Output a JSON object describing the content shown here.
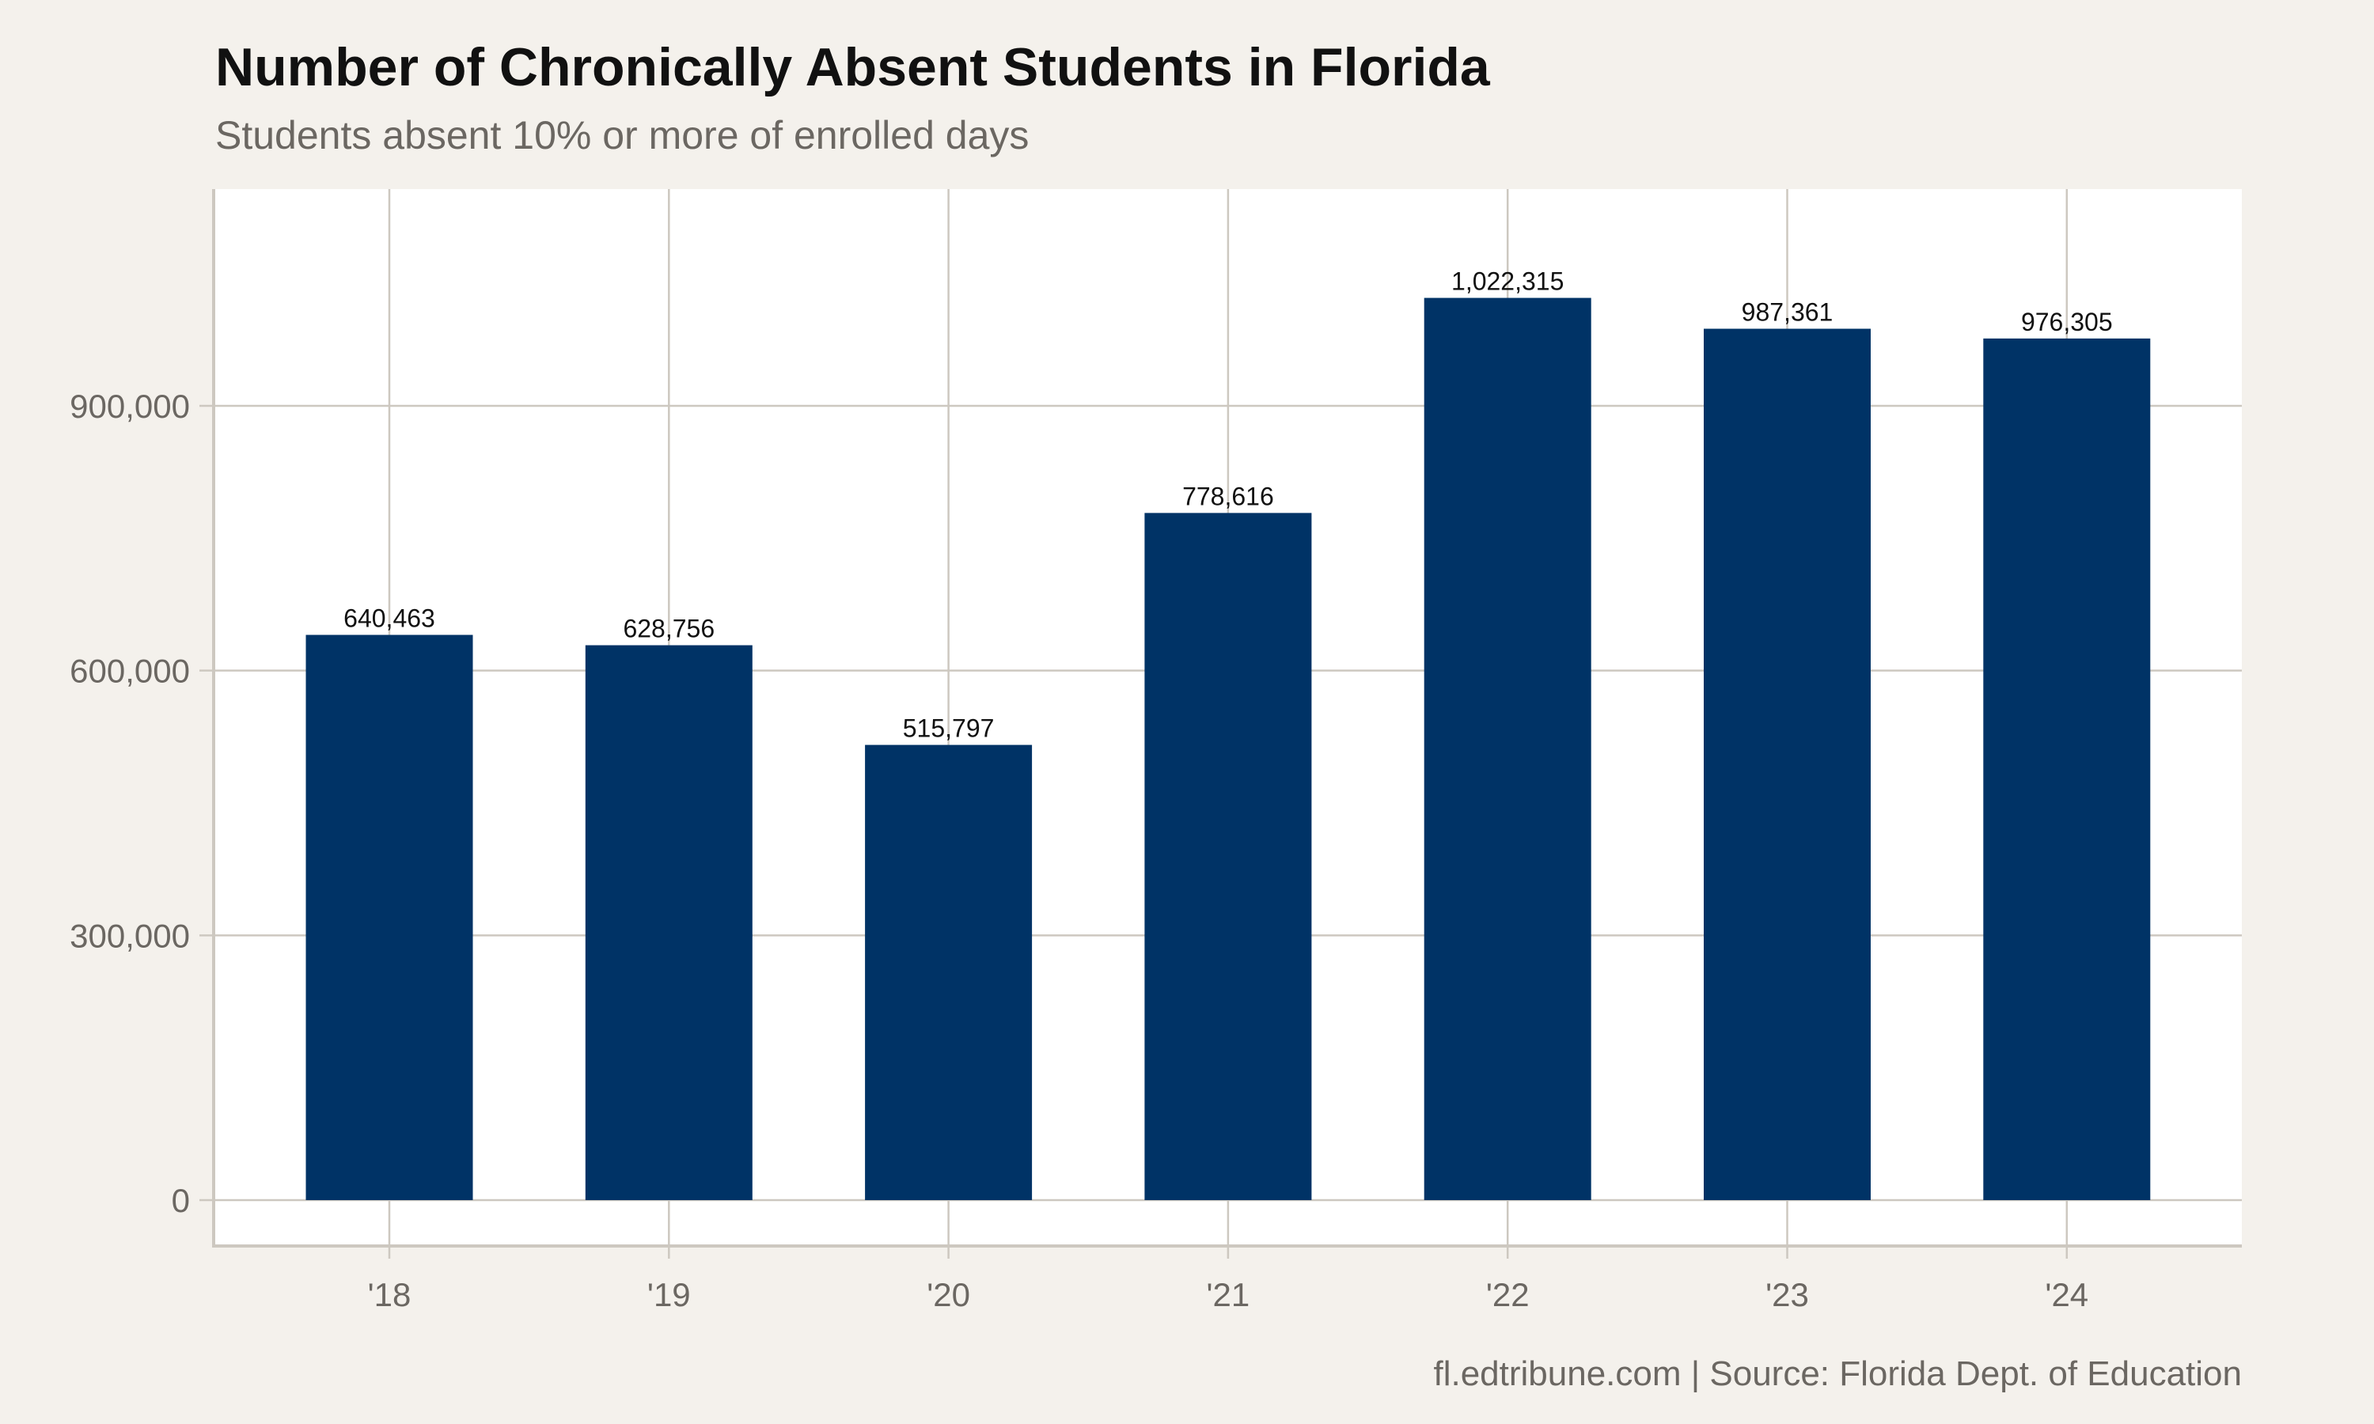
{
  "chart_data": {
    "type": "bar",
    "title": "Number of Chronically Absent Students in Florida",
    "subtitle": "Students absent 10% or more of enrolled days",
    "caption": "fl.edtribune.com | Source: Florida Dept. of Education",
    "xlabel": "",
    "ylabel": "",
    "categories": [
      "'18",
      "'19",
      "'20",
      "'21",
      "'22",
      "'23",
      "'24"
    ],
    "values": [
      640463,
      628756,
      515797,
      778616,
      1022315,
      987361,
      976305
    ],
    "data_labels": [
      "640,463",
      "628,756",
      "515,797",
      "778,616",
      "1,022,315",
      "987,361",
      "976,305"
    ],
    "yticks": [
      0,
      300000,
      600000,
      900000
    ],
    "ytick_labels": [
      "0",
      "300,000",
      "600,000",
      "900,000"
    ],
    "ylim": [
      -51000,
      1145000
    ],
    "grid": true,
    "legend": "none",
    "colors": {
      "bar": "#003366",
      "background": "#f4f1ec",
      "panel": "#ffffff",
      "grid": "#cdc8c0",
      "text_muted": "#6b6762"
    }
  }
}
